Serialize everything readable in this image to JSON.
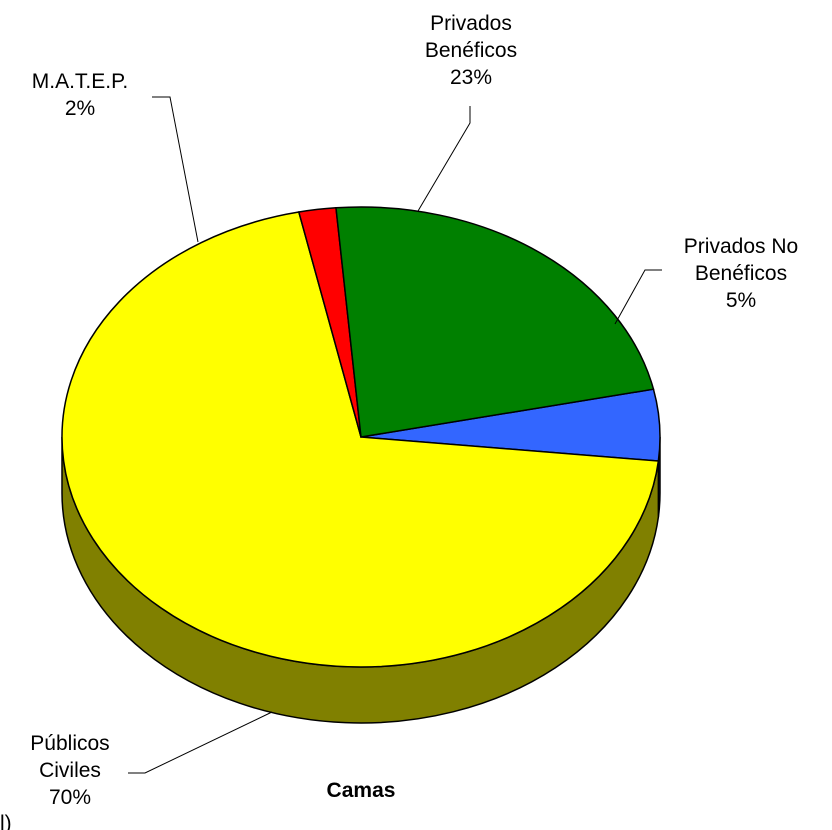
{
  "chart_data": {
    "type": "pie",
    "title": "Camas",
    "style": "3d-exploded-tilt",
    "slices": [
      {
        "category": "Privados No Beneficos",
        "label_lines": [
          "Privados No",
          "Benéficos"
        ],
        "percent_label": "5%",
        "value": 5,
        "color": "#3366ff",
        "side_color": "#1a3380"
      },
      {
        "category": "Publicos Civiles",
        "label_lines": [
          "Públicos",
          "Civiles"
        ],
        "percent_label": "70%",
        "value": 70,
        "color": "#ffff00",
        "side_color": "#808000"
      },
      {
        "category": "MATEP",
        "label_lines": [
          "M.A.T.E.P."
        ],
        "percent_label": "2%",
        "value": 2,
        "color": "#ff0000",
        "side_color": "#800000"
      },
      {
        "category": "Privados Beneficos",
        "label_lines": [
          "Privados",
          "Benéficos"
        ],
        "percent_label": "23%",
        "value": 23,
        "color": "#008000",
        "side_color": "#004000"
      }
    ],
    "start_angle_deg": -12,
    "legend": "none"
  },
  "footer_fragment": "l)"
}
